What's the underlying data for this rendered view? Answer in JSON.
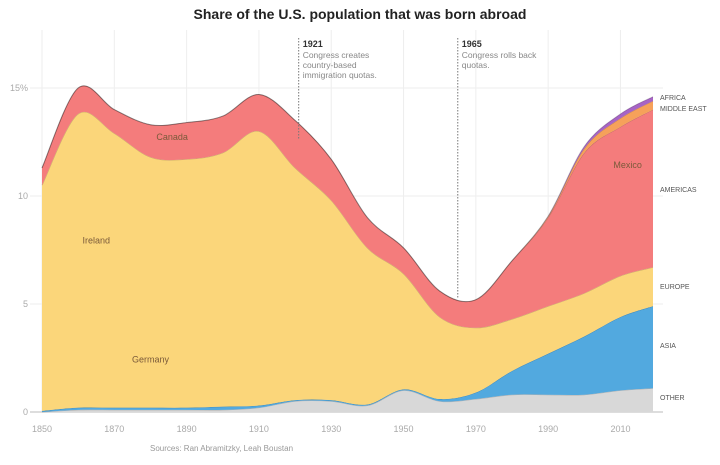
{
  "chart_data": {
    "type": "area",
    "stacked": true,
    "title": "Share of the U.S. population that was born abroad",
    "source": "Sources: Ran Abramitzky, Leah Boustan",
    "x": [
      1850,
      1860,
      1870,
      1880,
      1890,
      1900,
      1910,
      1920,
      1930,
      1940,
      1950,
      1960,
      1970,
      1980,
      1990,
      2000,
      2010,
      2019
    ],
    "xticks": [
      "1850",
      "1870",
      "1890",
      "1910",
      "1930",
      "1950",
      "1970",
      "1990",
      "2010"
    ],
    "xlim": [
      1850,
      2019
    ],
    "yticks": [
      "0",
      "5",
      "10",
      "15%"
    ],
    "ylim": [
      0,
      16
    ],
    "grid": true,
    "legend": "right-edge labels",
    "series": [
      {
        "name": "OTHER",
        "color": "#d8d8d8",
        "values": [
          0,
          0.1,
          0.1,
          0.1,
          0.1,
          0.1,
          0.2,
          0.5,
          0.5,
          0.3,
          1.0,
          0.5,
          0.6,
          0.8,
          0.8,
          0.8,
          1.0,
          1.1
        ]
      },
      {
        "name": "ASIA",
        "color": "#52a9df",
        "values": [
          0.05,
          0.1,
          0.1,
          0.1,
          0.1,
          0.15,
          0.1,
          0.05,
          0.05,
          0.05,
          0.05,
          0.1,
          0.3,
          1.1,
          1.9,
          2.7,
          3.4,
          3.8
        ]
      },
      {
        "name": "EUROPE",
        "color": "#fbd67a",
        "values": [
          10.45,
          13.6,
          12.7,
          11.6,
          11.5,
          11.75,
          12.7,
          10.75,
          9.25,
          7.25,
          5.35,
          3.8,
          3.0,
          2.4,
          2.2,
          2.0,
          1.9,
          1.8
        ]
      },
      {
        "name": "AMERICAS",
        "color": "#f47c7c",
        "values": [
          0.8,
          1.2,
          1.1,
          1.5,
          1.7,
          1.7,
          1.7,
          2.2,
          1.9,
          1.4,
          1.2,
          1.2,
          1.3,
          2.7,
          4.1,
          6.5,
          6.9,
          7.3
        ]
      },
      {
        "name": "MIDDLE EAST",
        "color": "#f6a15a",
        "values": [
          0,
          0,
          0,
          0,
          0,
          0,
          0,
          0,
          0,
          0,
          0,
          0,
          0,
          0,
          0.05,
          0.2,
          0.4,
          0.4
        ]
      },
      {
        "name": "AFRICA",
        "color": "#a764c6",
        "values": [
          0,
          0,
          0,
          0,
          0,
          0,
          0,
          0,
          0,
          0,
          0,
          0,
          0,
          0,
          0.02,
          0.1,
          0.2,
          0.2
        ]
      }
    ],
    "area_labels": [
      {
        "text": "Canada",
        "x": 1886,
        "y": 12.6
      },
      {
        "text": "Ireland",
        "x": 1865,
        "y": 7.8
      },
      {
        "text": "Germany",
        "x": 1880,
        "y": 2.3
      },
      {
        "text": "Mexico",
        "x": 2012,
        "y": 11.3
      }
    ],
    "annotations": [
      {
        "year": 1921,
        "title": "1921",
        "lines": [
          "Congress creates",
          "country-based",
          "immigration quotas."
        ]
      },
      {
        "year": 1965,
        "title": "1965",
        "lines": [
          "Congress rolls back",
          "quotas."
        ]
      }
    ]
  }
}
